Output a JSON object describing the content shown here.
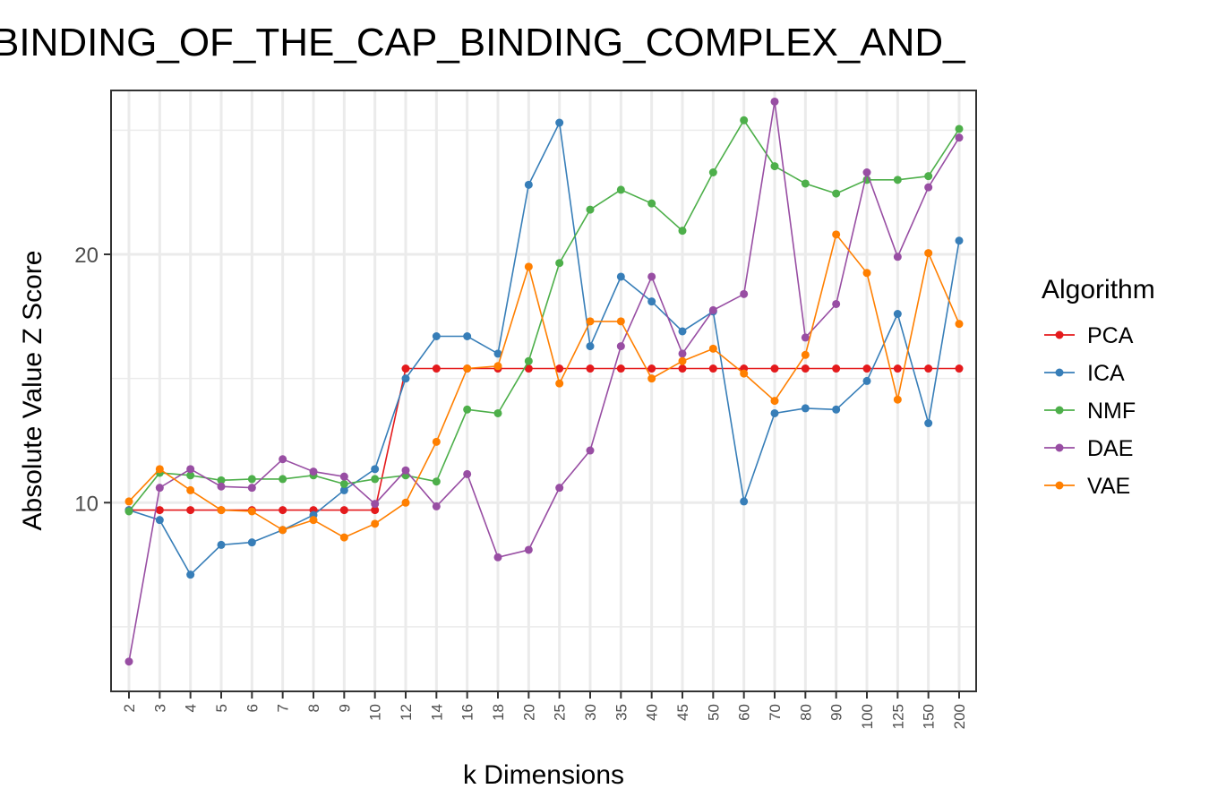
{
  "chart_data": {
    "type": "line",
    "title": "BINDING_OF_THE_CAP_BINDING_COMPLEX_AND_",
    "xlabel": "k Dimensions",
    "ylabel": "Absolute Value Z Score",
    "categories": [
      "2",
      "3",
      "4",
      "5",
      "6",
      "7",
      "8",
      "9",
      "10",
      "12",
      "14",
      "16",
      "18",
      "20",
      "25",
      "30",
      "35",
      "40",
      "45",
      "50",
      "60",
      "70",
      "80",
      "90",
      "100",
      "125",
      "150",
      "200"
    ],
    "yticks": [
      10,
      20
    ],
    "ylim": [
      2.4,
      26.6
    ],
    "grid": true,
    "legend": {
      "title": "Algorithm",
      "position": "right"
    },
    "series": [
      {
        "name": "PCA",
        "color": "#E41A1C",
        "values": [
          9.7,
          9.7,
          9.7,
          9.7,
          9.7,
          9.7,
          9.7,
          9.7,
          9.7,
          15.4,
          15.4,
          15.4,
          15.4,
          15.4,
          15.4,
          15.4,
          15.4,
          15.4,
          15.4,
          15.4,
          15.4,
          15.4,
          15.4,
          15.4,
          15.4,
          15.4,
          15.4,
          15.4
        ]
      },
      {
        "name": "ICA",
        "color": "#377EB8",
        "values": [
          9.7,
          9.3,
          7.1,
          8.3,
          8.4,
          8.9,
          9.5,
          10.5,
          11.35,
          15.0,
          16.7,
          16.7,
          16.0,
          22.8,
          25.3,
          16.3,
          19.1,
          18.1,
          16.9,
          17.7,
          10.05,
          13.6,
          13.8,
          13.75,
          14.9,
          17.6,
          13.2,
          20.55
        ]
      },
      {
        "name": "NMF",
        "color": "#4DAF4A",
        "values": [
          9.65,
          11.2,
          11.1,
          10.9,
          10.95,
          10.95,
          11.1,
          10.75,
          10.95,
          11.1,
          10.85,
          13.75,
          13.6,
          15.7,
          19.65,
          21.8,
          22.6,
          22.05,
          20.95,
          23.3,
          25.4,
          23.55,
          22.85,
          22.45,
          23.0,
          23.0,
          23.15,
          25.05
        ]
      },
      {
        "name": "DAE",
        "color": "#984EA3",
        "values": [
          3.6,
          10.6,
          11.35,
          10.65,
          10.6,
          11.75,
          11.25,
          11.05,
          9.95,
          11.3,
          9.85,
          11.15,
          7.8,
          8.1,
          10.6,
          12.1,
          16.3,
          19.1,
          16.0,
          17.75,
          18.4,
          26.15,
          16.65,
          18.0,
          23.3,
          19.9,
          22.7,
          24.7
        ]
      },
      {
        "name": "VAE",
        "color": "#FF7F00",
        "values": [
          10.05,
          11.35,
          10.5,
          9.7,
          9.65,
          8.9,
          9.3,
          8.6,
          9.15,
          10.0,
          12.45,
          15.4,
          15.5,
          19.5,
          14.8,
          17.3,
          17.3,
          15.0,
          15.7,
          16.2,
          15.2,
          14.1,
          15.95,
          20.8,
          19.25,
          14.15,
          20.05,
          17.2
        ]
      }
    ]
  }
}
